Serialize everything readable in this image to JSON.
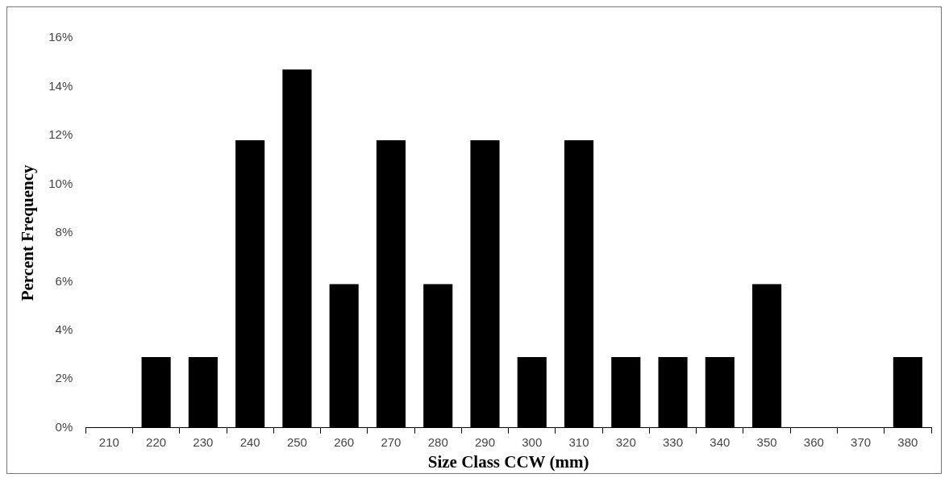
{
  "chart_data": {
    "type": "bar",
    "xlabel": "Size Class CCW (mm)",
    "ylabel": "Percent Frequency",
    "categories": [
      "210",
      "220",
      "230",
      "240",
      "250",
      "260",
      "270",
      "280",
      "290",
      "300",
      "310",
      "320",
      "330",
      "340",
      "350",
      "360",
      "370",
      "380"
    ],
    "values": [
      0,
      2.9,
      2.9,
      11.8,
      14.7,
      5.9,
      11.8,
      5.9,
      11.8,
      2.9,
      11.8,
      2.9,
      2.9,
      2.9,
      5.9,
      0,
      0,
      2.9
    ],
    "color": "#000000",
    "ylim": [
      0,
      16
    ],
    "yticks": [
      {
        "value": 0,
        "label": "0%"
      },
      {
        "value": 2,
        "label": "2%"
      },
      {
        "value": 4,
        "label": "4%"
      },
      {
        "value": 6,
        "label": "6%"
      },
      {
        "value": 8,
        "label": "8%"
      },
      {
        "value": 10,
        "label": "10%"
      },
      {
        "value": 12,
        "label": "12%"
      },
      {
        "value": 14,
        "label": "14%"
      },
      {
        "value": 16,
        "label": "16%"
      }
    ],
    "grid": false,
    "legend": false
  }
}
